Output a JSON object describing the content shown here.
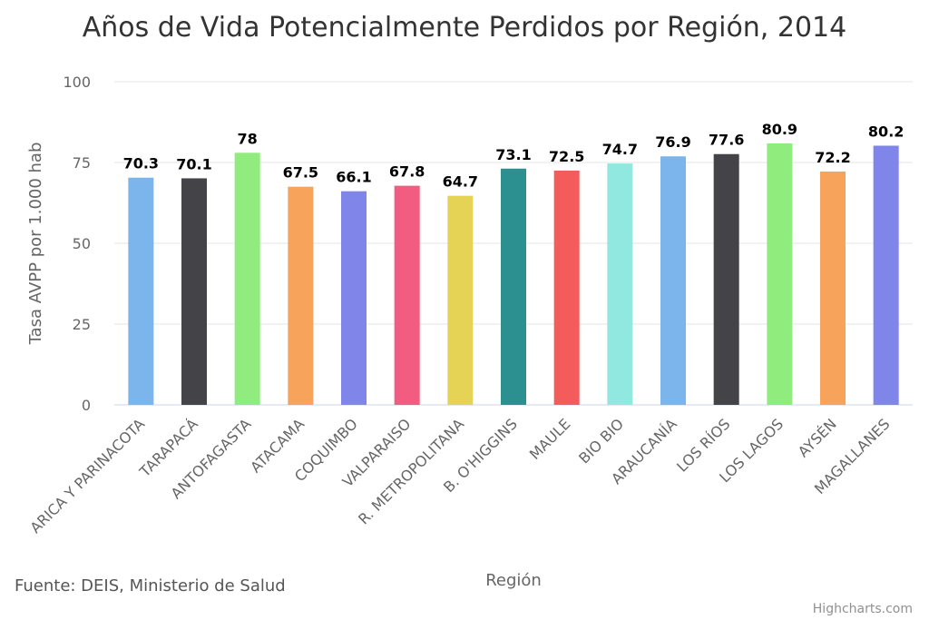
{
  "chart_data": {
    "type": "bar",
    "title": "Años de Vida Potencialmente Perdidos por Región, 2014",
    "xlabel": "Región",
    "ylabel": "Tasa AVPP por 1.000 hab",
    "ylim": [
      0,
      100
    ],
    "yticks": [
      0,
      25,
      50,
      75,
      100
    ],
    "grid": true,
    "categories": [
      "ARICA Y PARINACOTA",
      "TARAPACÁ",
      "ANTOFAGASTA",
      "ATACAMA",
      "COQUIMBO",
      "VALPARAISO",
      "R. METROPOLITANA",
      "B. O'HIGGINS",
      "MAULE",
      "BIO BIO",
      "ARAUCANÍA",
      "LOS RÍOS",
      "LOS LAGOS",
      "AYSÉN",
      "MAGALLANES"
    ],
    "values": [
      70.3,
      70.1,
      78,
      67.5,
      66.1,
      67.8,
      64.7,
      73.1,
      72.5,
      74.7,
      76.9,
      77.6,
      80.9,
      72.2,
      80.2
    ],
    "colors": [
      "#7cb5ec",
      "#434348",
      "#90ed7d",
      "#f7a35c",
      "#8085e9",
      "#f15c80",
      "#e4d354",
      "#2b908f",
      "#f45b5b",
      "#91e8e1",
      "#7cb5ec",
      "#434348",
      "#90ed7d",
      "#f7a35c",
      "#8085e9"
    ]
  },
  "source": "Fuente: DEIS, Ministerio de Salud",
  "credit": "Highcharts.com"
}
